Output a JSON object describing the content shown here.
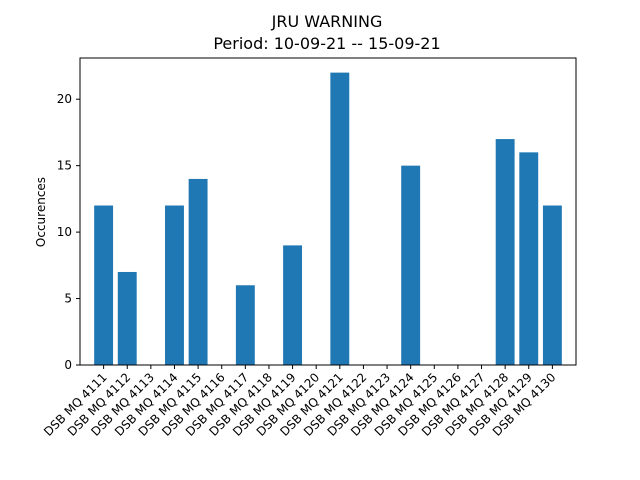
{
  "chart_data": {
    "type": "bar",
    "title": "JRU WARNING",
    "subtitle": "Period: 10-09-21 -- 15-09-21",
    "xlabel": "",
    "ylabel": "Occurences",
    "ylim": [
      0,
      23.1
    ],
    "yticks": [
      0,
      5,
      10,
      15,
      20
    ],
    "grid": false,
    "legend": "none",
    "bar_color": "#1f77b4",
    "categories": [
      "DSB MQ 4111",
      "DSB MQ 4112",
      "DSB MQ 4113",
      "DSB MQ 4114",
      "DSB MQ 4115",
      "DSB MQ 4116",
      "DSB MQ 4117",
      "DSB MQ 4118",
      "DSB MQ 4119",
      "DSB MQ 4120",
      "DSB MQ 4121",
      "DSB MQ 4122",
      "DSB MQ 4123",
      "DSB MQ 4124",
      "DSB MQ 4125",
      "DSB MQ 4126",
      "DSB MQ 4127",
      "DSB MQ 4128",
      "DSB MQ 4129",
      "DSB MQ 4130"
    ],
    "values": [
      12,
      7,
      0,
      12,
      14,
      0,
      6,
      0,
      9,
      0,
      22,
      0,
      0,
      15,
      0,
      0,
      0,
      17,
      16,
      12
    ]
  }
}
